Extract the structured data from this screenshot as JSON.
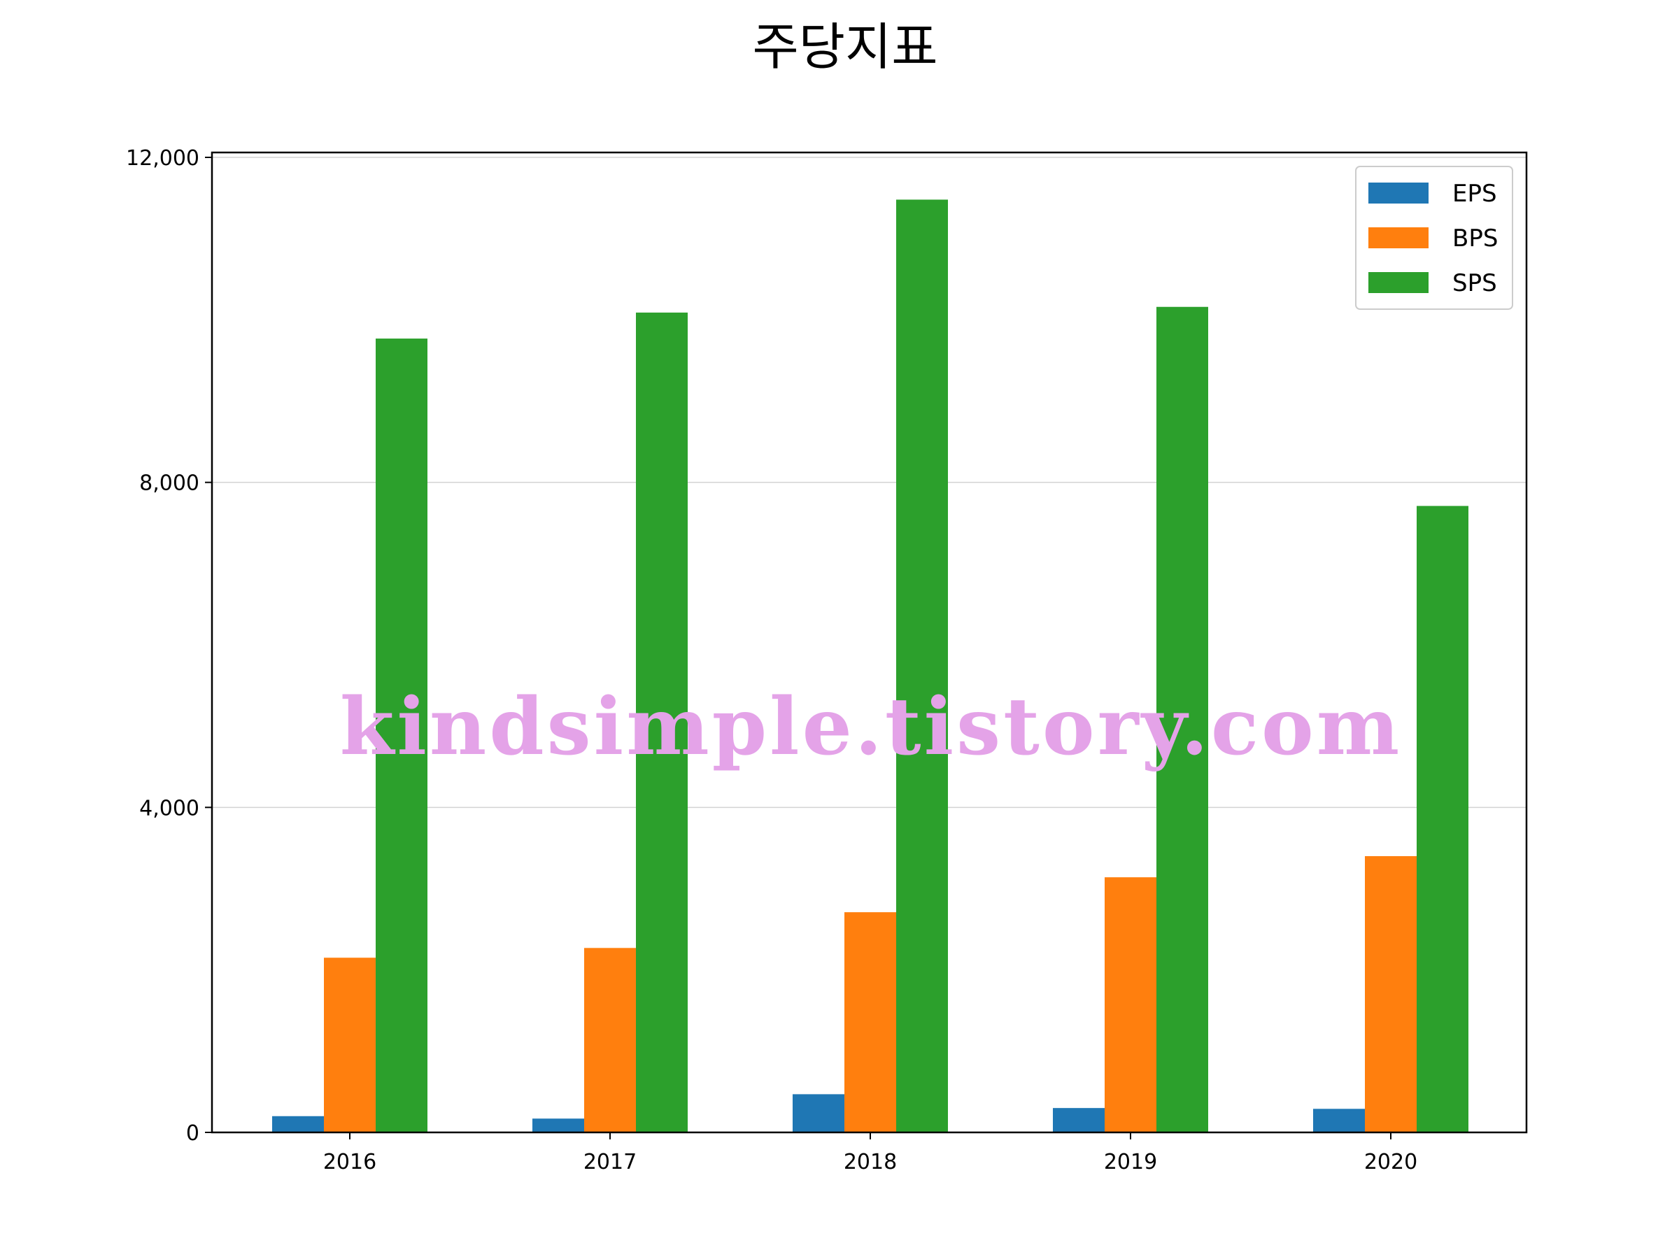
{
  "watermark": "kindsimple.tistory.com",
  "chart_data": {
    "type": "bar",
    "title": "주당지표",
    "xlabel": "",
    "ylabel": "",
    "categories": [
      "2016",
      "2017",
      "2018",
      "2019",
      "2020"
    ],
    "series": [
      {
        "name": "EPS",
        "color": "#1f77b4",
        "values": [
          200,
          170,
          470,
          300,
          290
        ]
      },
      {
        "name": "BPS",
        "color": "#ff7f0e",
        "values": [
          2150,
          2270,
          2710,
          3140,
          3400
        ]
      },
      {
        "name": "SPS",
        "color": "#2ca02c",
        "values": [
          9770,
          10090,
          11480,
          10160,
          7710
        ]
      }
    ],
    "ylim": [
      0,
      12000
    ],
    "yticks": [
      0,
      4000,
      8000,
      12000
    ],
    "ytick_labels": [
      "0",
      "4,000",
      "8,000",
      "12,000"
    ],
    "grid": "horizontal",
    "legend_position": "top-right"
  }
}
